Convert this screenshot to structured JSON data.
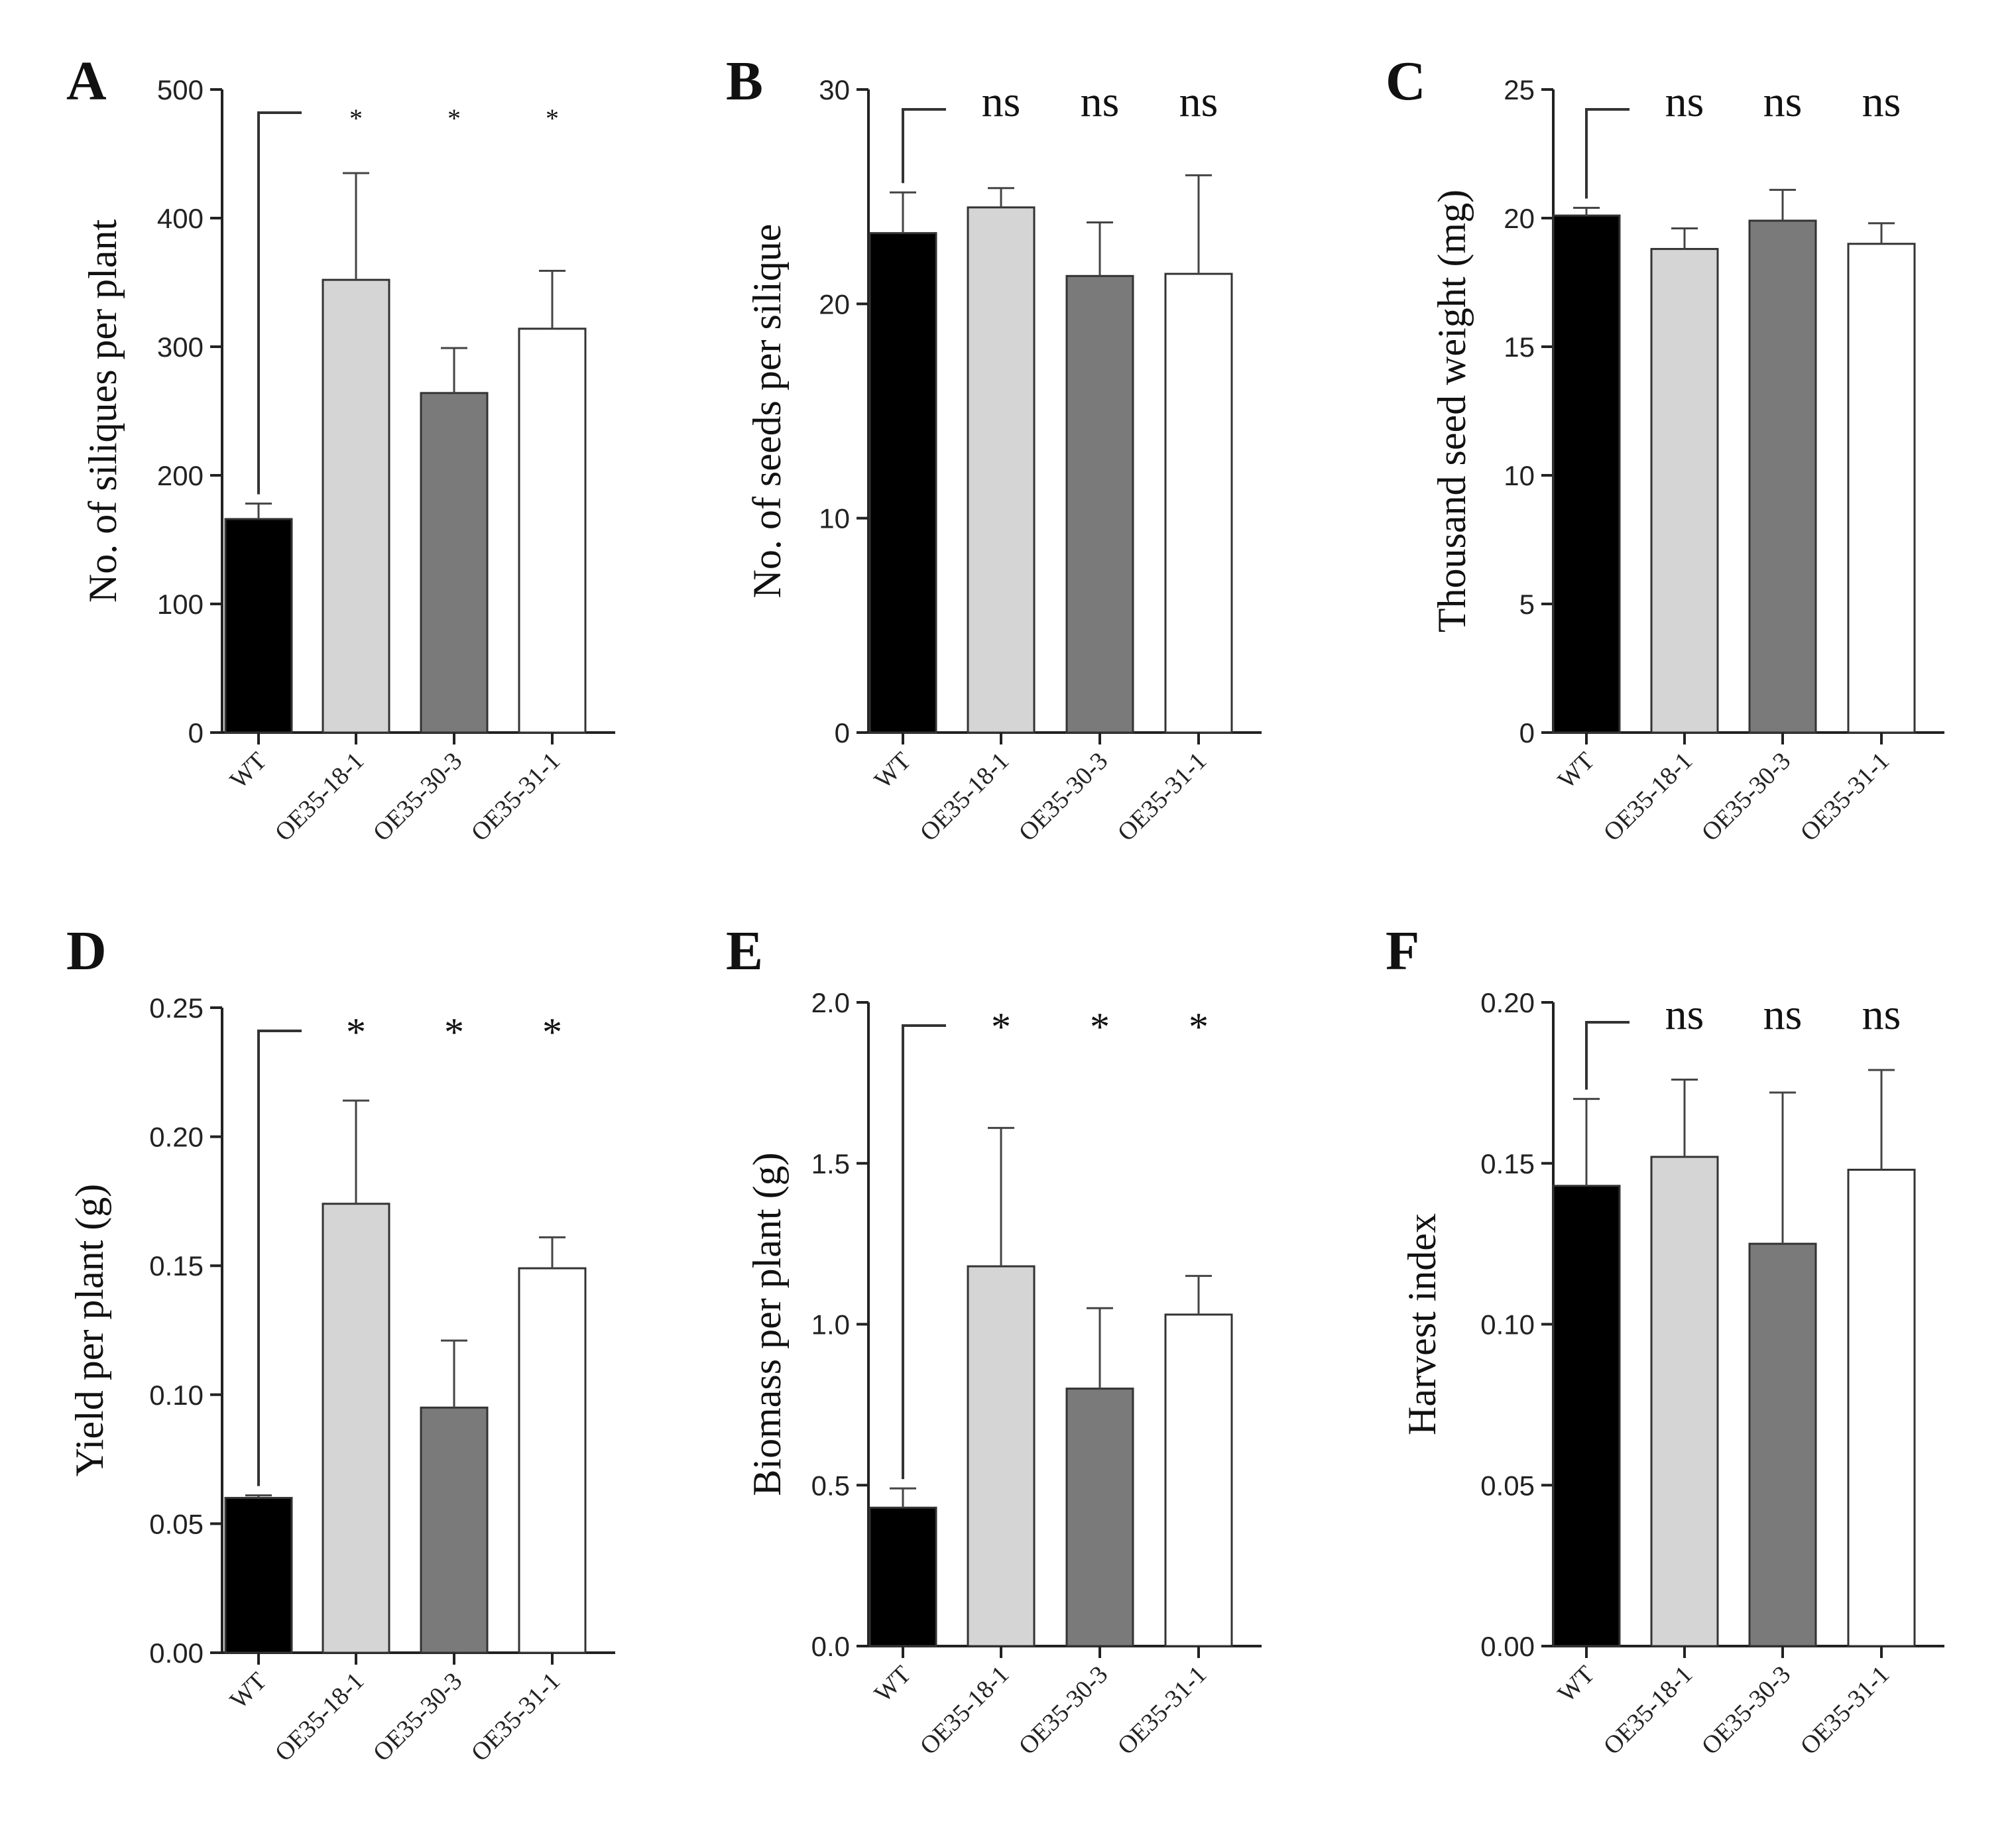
{
  "figure": {
    "colors": {
      "WT": "#000000",
      "OE35-18-1": "#d5d5d5",
      "OE35-30-3": "#7a7a7a",
      "OE35-31-1": "#ffffff"
    }
  },
  "chart_data": [
    {
      "type": "bar",
      "panel": "A",
      "categories": [
        "WT",
        "OE35-18-1",
        "OE35-30-3",
        "OE35-31-1"
      ],
      "values": [
        166,
        352,
        264,
        314
      ],
      "errors": [
        12,
        83,
        35,
        45
      ],
      "ylabel": "No. of siliques per plant",
      "ylim": [
        0,
        500
      ],
      "yticks": [
        "0",
        "100",
        "200",
        "300",
        "400",
        "500"
      ],
      "significance": [
        "*",
        "*",
        "*"
      ]
    },
    {
      "type": "bar",
      "panel": "B",
      "categories": [
        "WT",
        "OE35-18-1",
        "OE35-30-3",
        "OE35-31-1"
      ],
      "values": [
        23.3,
        24.5,
        21.3,
        21.4
      ],
      "errors": [
        1.9,
        0.9,
        2.5,
        4.6
      ],
      "ylabel": "No. of seeds per silique",
      "ylim": [
        0,
        30
      ],
      "yticks": [
        "0",
        "10",
        "20",
        "30"
      ],
      "significance": [
        "ns",
        "ns",
        "ns"
      ]
    },
    {
      "type": "bar",
      "panel": "C",
      "categories": [
        "WT",
        "OE35-18-1",
        "OE35-30-3",
        "OE35-31-1"
      ],
      "values": [
        20.1,
        18.8,
        19.9,
        19.0
      ],
      "errors": [
        0.3,
        0.8,
        1.2,
        0.8
      ],
      "ylabel": "Thousand seed weight (mg)",
      "ylim": [
        0,
        25
      ],
      "yticks": [
        "0",
        "5",
        "10",
        "15",
        "20",
        "25"
      ],
      "significance": [
        "ns",
        "ns",
        "ns"
      ]
    },
    {
      "type": "bar",
      "panel": "D",
      "categories": [
        "WT",
        "OE35-18-1",
        "OE35-30-3",
        "OE35-31-1"
      ],
      "values": [
        0.06,
        0.174,
        0.095,
        0.149
      ],
      "errors": [
        0.001,
        0.04,
        0.026,
        0.012
      ],
      "ylabel": "Yield per plant (g)",
      "ylim": [
        0,
        0.25
      ],
      "yticks": [
        "0.00",
        "0.05",
        "0.10",
        "0.15",
        "0.20",
        "0.25"
      ],
      "significance": [
        "*",
        "*",
        "*"
      ]
    },
    {
      "type": "bar",
      "panel": "E",
      "categories": [
        "WT",
        "OE35-18-1",
        "OE35-30-3",
        "OE35-31-1"
      ],
      "values": [
        0.43,
        1.18,
        0.8,
        1.03
      ],
      "errors": [
        0.06,
        0.43,
        0.25,
        0.12
      ],
      "ylabel": "Biomass per plant (g)",
      "ylim": [
        0,
        2.0
      ],
      "yticks": [
        "0.0",
        "0.5",
        "1.0",
        "1.5",
        "2.0"
      ],
      "significance": [
        "*",
        "*",
        "*"
      ]
    },
    {
      "type": "bar",
      "panel": "F",
      "categories": [
        "WT",
        "OE35-18-1",
        "OE35-30-3",
        "OE35-31-1"
      ],
      "values": [
        0.143,
        0.152,
        0.125,
        0.148
      ],
      "errors": [
        0.027,
        0.024,
        0.047,
        0.031
      ],
      "ylabel": "Harvest index",
      "ylim": [
        0,
        0.2
      ],
      "yticks": [
        "0.00",
        "0.05",
        "0.10",
        "0.15",
        "0.20"
      ],
      "significance": [
        "ns",
        "ns",
        "ns"
      ]
    }
  ]
}
